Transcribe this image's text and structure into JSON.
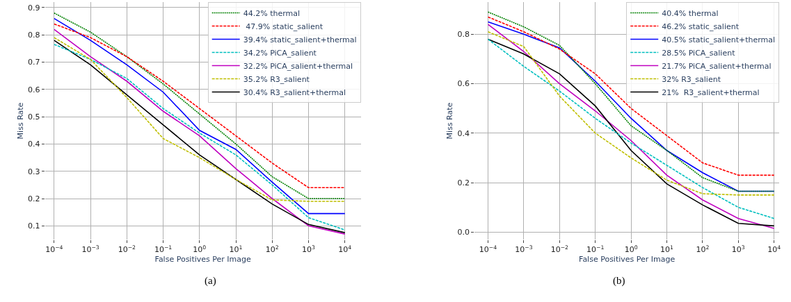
{
  "chart_data": [
    {
      "type": "line",
      "xlabel": "False Positives Per Image",
      "ylabel": "Miss Rate",
      "annotations": [
        "(a)"
      ],
      "x": [
        0.0001,
        0.001,
        0.01,
        0.1,
        1,
        10,
        100,
        1000,
        10000
      ],
      "log": "x",
      "xlim": [
        5.6e-05,
        27500
      ],
      "ylim": [
        0.05,
        0.92
      ],
      "xticks": [
        {
          "value": 0.0001,
          "label": "10$^{−4}$"
        },
        {
          "value": 0.001,
          "label": "10$^{−3}$"
        },
        {
          "value": 0.01,
          "label": "10$^{−2}$"
        },
        {
          "value": 0.1,
          "label": "10$^{−1}$"
        },
        {
          "value": 1,
          "label": "10$^{0}$"
        },
        {
          "value": 10,
          "label": "10$^{1}$"
        },
        {
          "value": 100,
          "label": "10$^{2}$"
        },
        {
          "value": 1000,
          "label": "10$^{3}$"
        },
        {
          "value": 10000,
          "label": "10$^{4}$"
        }
      ],
      "yticks": [
        0.1,
        0.2,
        0.3,
        0.4,
        0.5,
        0.6,
        0.7,
        0.8,
        0.9
      ],
      "grid": true,
      "legend": "top right",
      "series": [
        {
          "name": "44.2% thermal",
          "color": "#008000",
          "line_style": "dotted",
          "values": [
            0.88,
            0.81,
            0.72,
            0.62,
            0.51,
            0.4,
            0.28,
            0.2,
            0.2
          ]
        },
        {
          "name": " 47.9% static_salient",
          "color": "#ff0000",
          "line_style": "dashed",
          "values": [
            0.84,
            0.79,
            0.72,
            0.63,
            0.53,
            0.43,
            0.33,
            0.24,
            0.24
          ]
        },
        {
          "name": "39.4% static_salient+thermal",
          "color": "#0000ff",
          "line_style": "solid",
          "values": [
            0.86,
            0.78,
            0.69,
            0.59,
            0.45,
            0.38,
            0.26,
            0.145,
            0.145
          ]
        },
        {
          "name": "34.2% PiCA_salient",
          "color": "#00bfbf",
          "line_style": "dashed",
          "values": [
            0.765,
            0.71,
            0.64,
            0.53,
            0.44,
            0.36,
            0.25,
            0.13,
            0.085
          ]
        },
        {
          "name": "32.2% PiCA_salient+thermal",
          "color": "#bf00bf",
          "line_style": "solid",
          "values": [
            0.82,
            0.72,
            0.63,
            0.52,
            0.43,
            0.31,
            0.2,
            0.1,
            0.07
          ]
        },
        {
          "name": "35.2% R3_salient",
          "color": "#bfbf00",
          "line_style": "dashed",
          "values": [
            0.79,
            0.71,
            0.57,
            0.42,
            0.35,
            0.27,
            0.195,
            0.19,
            0.19
          ]
        },
        {
          "name": "30.4% R3_salient+thermal",
          "color": "#000000",
          "line_style": "solid",
          "values": [
            0.78,
            0.69,
            0.58,
            0.47,
            0.36,
            0.27,
            0.18,
            0.105,
            0.075
          ]
        }
      ]
    },
    {
      "type": "line",
      "xlabel": "False Positives Per Image",
      "ylabel": "Miss Rate",
      "annotations": [
        "(b)"
      ],
      "x": [
        0.0001,
        0.001,
        0.01,
        0.1,
        1,
        10,
        100,
        1000,
        10000
      ],
      "log": "x",
      "xlim": [
        4.2e-05,
        14000
      ],
      "ylim": [
        -0.03,
        0.93
      ],
      "xticks": [
        {
          "value": 0.0001,
          "label": "10$^{−4}$"
        },
        {
          "value": 0.001,
          "label": "10$^{−3}$"
        },
        {
          "value": 0.01,
          "label": "10$^{−2}$"
        },
        {
          "value": 0.1,
          "label": "10$^{−1}$"
        },
        {
          "value": 1,
          "label": "10$^{0}$"
        },
        {
          "value": 10,
          "label": "10$^{1}$"
        },
        {
          "value": 100,
          "label": "10$^{2}$"
        },
        {
          "value": 1000,
          "label": "10$^{3}$"
        },
        {
          "value": 10000,
          "label": "10$^{4}$"
        }
      ],
      "yticks": [
        {
          "value": 0,
          "label": "0.0"
        },
        0.2,
        0.4,
        0.6,
        0.8
      ],
      "grid": true,
      "legend": "top right",
      "series": [
        {
          "name": "40.4% thermal",
          "color": "#008000",
          "line_style": "dotted",
          "values": [
            0.89,
            0.83,
            0.755,
            0.6,
            0.43,
            0.33,
            0.22,
            0.165,
            0.165
          ]
        },
        {
          "name": "46.2% static_salient",
          "color": "#ff0000",
          "line_style": "dashed",
          "values": [
            0.87,
            0.81,
            0.74,
            0.64,
            0.5,
            0.39,
            0.28,
            0.23,
            0.23
          ]
        },
        {
          "name": "40.5% static_salient+thermal",
          "color": "#0000ff",
          "line_style": "solid",
          "values": [
            0.85,
            0.8,
            0.745,
            0.61,
            0.46,
            0.33,
            0.24,
            0.165,
            0.165
          ]
        },
        {
          "name": "28.5% PiCA_salient",
          "color": "#00bfbf",
          "line_style": "dashed",
          "values": [
            0.78,
            0.67,
            0.57,
            0.46,
            0.36,
            0.27,
            0.18,
            0.1,
            0.055
          ]
        },
        {
          "name": "21.7% PiCA_salient+thermal",
          "color": "#bf00bf",
          "line_style": "solid",
          "values": [
            0.84,
            0.73,
            0.6,
            0.49,
            0.37,
            0.23,
            0.13,
            0.055,
            0.015
          ]
        },
        {
          "name": "32% R3_salient",
          "color": "#bfbf00",
          "line_style": "dashed",
          "values": [
            0.81,
            0.75,
            0.55,
            0.4,
            0.3,
            0.21,
            0.155,
            0.15,
            0.15
          ]
        },
        {
          "name": "21%  R3_salient+thermal",
          "color": "#000000",
          "line_style": "solid",
          "values": [
            0.78,
            0.72,
            0.64,
            0.51,
            0.33,
            0.195,
            0.11,
            0.035,
            0.025
          ]
        }
      ]
    }
  ]
}
